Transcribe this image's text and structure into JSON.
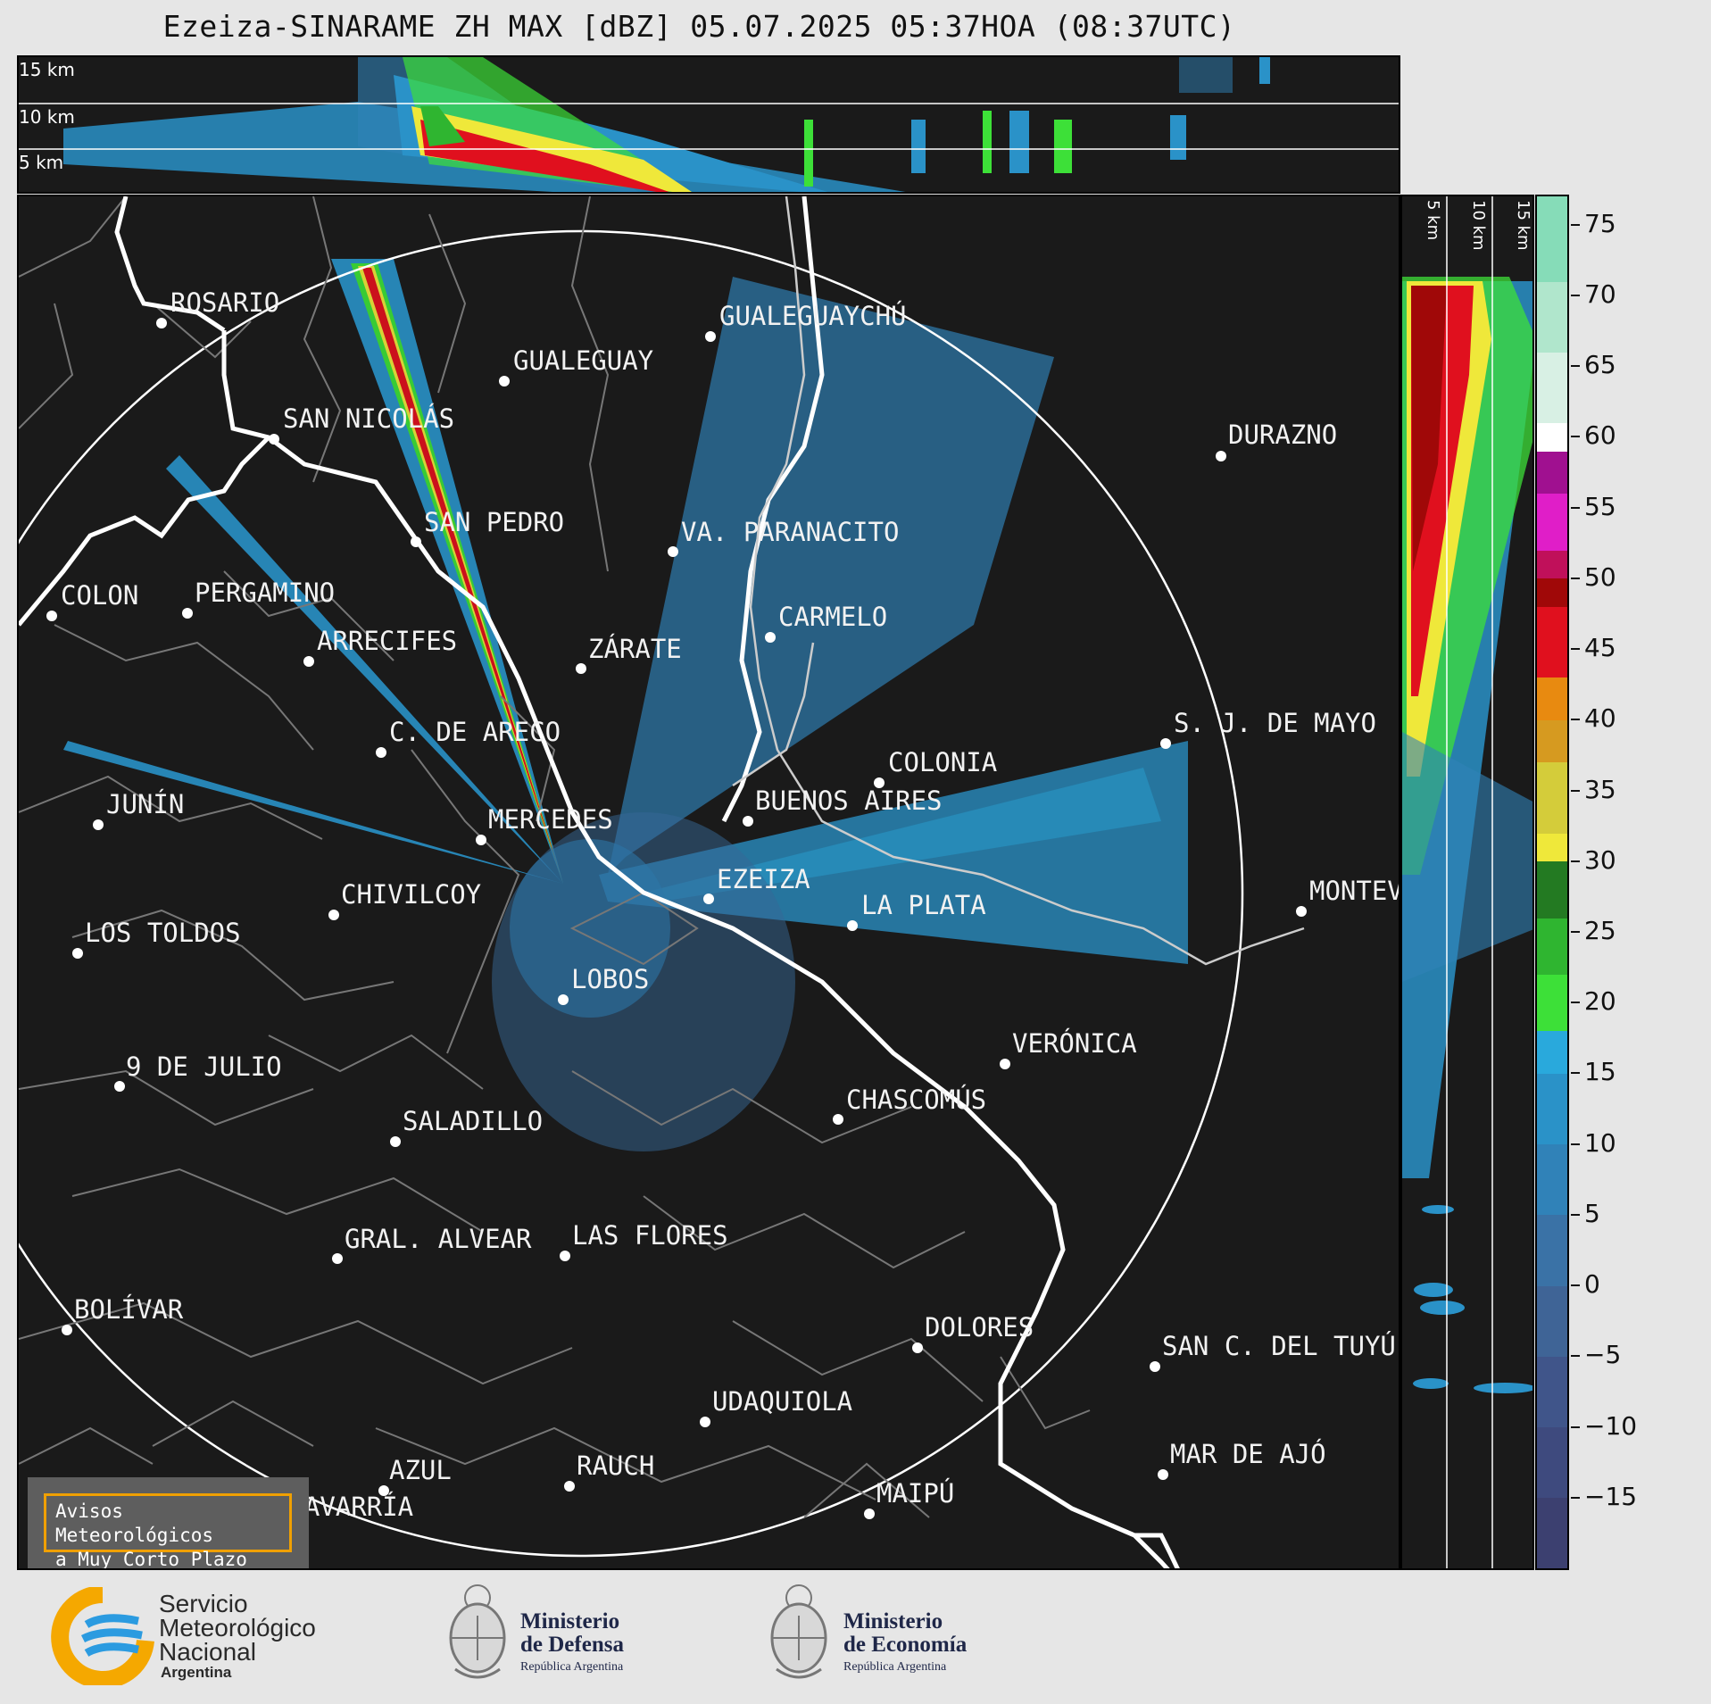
{
  "title": "Ezeiza-SINARAME ZH MAX [dBZ] 05.07.2025 05:37HOA (08:37UTC)",
  "top_panel": {
    "altitude_labels": [
      "15 km",
      "10 km",
      "5 km"
    ]
  },
  "side_panel": {
    "altitude_labels": [
      "5 km",
      "10 km",
      "15 km"
    ]
  },
  "colorbar": {
    "unit": "dBZ",
    "ticks": [
      "75",
      "70",
      "65",
      "60",
      "55",
      "50",
      "45",
      "40",
      "35",
      "30",
      "25",
      "20",
      "15",
      "10",
      "5",
      "0",
      "−5",
      "−10",
      "−15"
    ],
    "range": [
      -20,
      77
    ],
    "colors": [
      {
        "from": -20,
        "to": -15,
        "hex": "#3c4070"
      },
      {
        "from": -15,
        "to": -10,
        "hex": "#3e4a7e"
      },
      {
        "from": -10,
        "to": -5,
        "hex": "#40558a"
      },
      {
        "from": -5,
        "to": 0,
        "hex": "#3f6496"
      },
      {
        "from": 0,
        "to": 5,
        "hex": "#3a72a6"
      },
      {
        "from": 5,
        "to": 10,
        "hex": "#3082b8"
      },
      {
        "from": 10,
        "to": 15,
        "hex": "#2a92c8"
      },
      {
        "from": 15,
        "to": 18,
        "hex": "#29a9dc"
      },
      {
        "from": 18,
        "to": 22,
        "hex": "#3de038"
      },
      {
        "from": 22,
        "to": 26,
        "hex": "#2fb530"
      },
      {
        "from": 26,
        "to": 30,
        "hex": "#237a22"
      },
      {
        "from": 30,
        "to": 32,
        "hex": "#efe83a"
      },
      {
        "from": 32,
        "to": 37,
        "hex": "#d4cc3a"
      },
      {
        "from": 37,
        "to": 40,
        "hex": "#d69a20"
      },
      {
        "from": 40,
        "to": 43,
        "hex": "#e88a10"
      },
      {
        "from": 43,
        "to": 48,
        "hex": "#e0101e"
      },
      {
        "from": 48,
        "to": 50,
        "hex": "#a00808"
      },
      {
        "from": 50,
        "to": 52,
        "hex": "#c0105a"
      },
      {
        "from": 52,
        "to": 56,
        "hex": "#e01ec8"
      },
      {
        "from": 56,
        "to": 59,
        "hex": "#a01090"
      },
      {
        "from": 59,
        "to": 61,
        "hex": "#ffffff"
      },
      {
        "from": 61,
        "to": 66,
        "hex": "#d8f0e4"
      },
      {
        "from": 66,
        "to": 71,
        "hex": "#b0e6cc"
      },
      {
        "from": 71,
        "to": 77,
        "hex": "#86dcb8"
      }
    ]
  },
  "cities": [
    {
      "name": "ROSARIO"
    },
    {
      "name": "GUALEGUAYCHÚ"
    },
    {
      "name": "GUALEGUAY"
    },
    {
      "name": "SAN NICOLÁS"
    },
    {
      "name": "DURAZNO"
    },
    {
      "name": "SAN PEDRO"
    },
    {
      "name": "VA. PARANACITO"
    },
    {
      "name": "COLON"
    },
    {
      "name": "PERGAMINO"
    },
    {
      "name": "CARMELO"
    },
    {
      "name": "ARRECIFES"
    },
    {
      "name": "ZÁRATE"
    },
    {
      "name": "S. J. DE MAYO"
    },
    {
      "name": "C. DE ARECO"
    },
    {
      "name": "COLONIA"
    },
    {
      "name": "BUENOS AIRES"
    },
    {
      "name": "JUNÍN"
    },
    {
      "name": "MERCEDES"
    },
    {
      "name": "EZEIZA"
    },
    {
      "name": "MONTEV"
    },
    {
      "name": "CHIVILCOY"
    },
    {
      "name": "LA PLATA"
    },
    {
      "name": "LOS TOLDOS"
    },
    {
      "name": "LOBOS"
    },
    {
      "name": "VERÓNICA"
    },
    {
      "name": "9 DE JULIO"
    },
    {
      "name": "CHASCOMÚS"
    },
    {
      "name": "SALADILLO"
    },
    {
      "name": "GRAL. ALVEAR"
    },
    {
      "name": "LAS FLORES"
    },
    {
      "name": "BOLÍVAR"
    },
    {
      "name": "DOLORES"
    },
    {
      "name": "SAN C. DEL TUYÚ"
    },
    {
      "name": "UDAQUIOLA"
    },
    {
      "name": "MAR DE AJÓ"
    },
    {
      "name": "AZUL"
    },
    {
      "name": "RAUCH"
    },
    {
      "name": "MAIPÚ"
    },
    {
      "name": "OLAVARRÍA"
    }
  ],
  "alert_box": {
    "line1": "Avisos Meteorológicos",
    "line2": "a Muy Corto Plazo"
  },
  "logos": {
    "smn": {
      "line1": "Servicio",
      "line2": "Meteorológico",
      "line3": "Nacional",
      "line4": "Argentina"
    },
    "defensa": {
      "line1": "Ministerio",
      "line2": "de Defensa",
      "line3": "República Argentina"
    },
    "economia": {
      "line1": "Ministerio",
      "line2": "de Economía",
      "line3": "República Argentina"
    }
  }
}
